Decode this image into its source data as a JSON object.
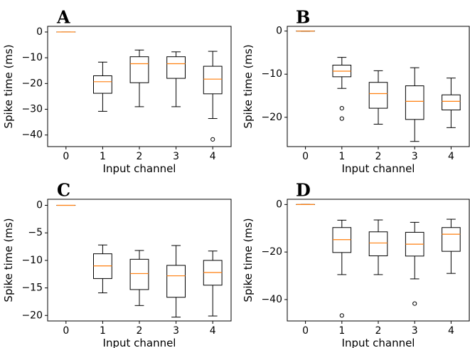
{
  "chart_data": [
    {
      "type": "box",
      "panel_label": "A",
      "xlabel": "Input channel",
      "ylabel": "Spike time (ms)",
      "ylim": [
        -44.5,
        2.2
      ],
      "yticks": [
        0,
        -10,
        -20,
        -30,
        -40
      ],
      "categories": [
        "0",
        "1",
        "2",
        "3",
        "4"
      ],
      "boxes": [
        {
          "min": 0,
          "q1": 0,
          "median": 0,
          "q3": 0,
          "max": 0,
          "fliers": []
        },
        {
          "min": -30.8,
          "q1": -23.8,
          "median": -19.3,
          "q3": -17.0,
          "max": -11.7,
          "fliers": []
        },
        {
          "min": -29.0,
          "q1": -19.7,
          "median": -12.3,
          "q3": -9.6,
          "max": -7.0,
          "fliers": []
        },
        {
          "min": -29.0,
          "q1": -18.0,
          "median": -12.3,
          "q3": -9.6,
          "max": -7.7,
          "fliers": []
        },
        {
          "min": -33.6,
          "q1": -24.0,
          "median": -18.3,
          "q3": -13.3,
          "max": -7.5,
          "fliers": [
            -41.7
          ]
        }
      ]
    },
    {
      "type": "box",
      "panel_label": "B",
      "xlabel": "Input channel",
      "ylabel": "Spike time (ms)",
      "ylim": [
        -26.8,
        1.1
      ],
      "yticks": [
        0,
        -10,
        -20
      ],
      "categories": [
        "0",
        "1",
        "2",
        "3",
        "4"
      ],
      "boxes": [
        {
          "min": 0,
          "q1": 0,
          "median": 0,
          "q3": 0,
          "max": 0,
          "fliers": []
        },
        {
          "min": -13.3,
          "q1": -10.6,
          "median": -9.3,
          "q3": -7.9,
          "max": -6.1,
          "fliers": [
            -17.9,
            -20.3
          ]
        },
        {
          "min": -21.6,
          "q1": -17.9,
          "median": -14.5,
          "q3": -11.9,
          "max": -9.2,
          "fliers": []
        },
        {
          "min": -25.6,
          "q1": -20.5,
          "median": -16.3,
          "q3": -12.7,
          "max": -8.5,
          "fliers": []
        },
        {
          "min": -22.4,
          "q1": -18.3,
          "median": -16.3,
          "q3": -14.8,
          "max": -10.9,
          "fliers": []
        }
      ]
    },
    {
      "type": "box",
      "panel_label": "C",
      "xlabel": "Input channel",
      "ylabel": "Spike time (ms)",
      "ylim": [
        -21.0,
        1.1
      ],
      "yticks": [
        0,
        -5,
        -10,
        -15,
        -20
      ],
      "categories": [
        "0",
        "1",
        "2",
        "3",
        "4"
      ],
      "boxes": [
        {
          "min": 0,
          "q1": 0,
          "median": 0,
          "q3": 0,
          "max": 0,
          "fliers": []
        },
        {
          "min": -15.9,
          "q1": -13.3,
          "median": -11.0,
          "q3": -8.8,
          "max": -7.2,
          "fliers": []
        },
        {
          "min": -18.2,
          "q1": -15.3,
          "median": -12.4,
          "q3": -9.8,
          "max": -8.2,
          "fliers": []
        },
        {
          "min": -20.3,
          "q1": -16.7,
          "median": -12.8,
          "q3": -10.9,
          "max": -7.3,
          "fliers": []
        },
        {
          "min": -20.1,
          "q1": -14.5,
          "median": -12.2,
          "q3": -10.0,
          "max": -8.3,
          "fliers": []
        }
      ]
    },
    {
      "type": "box",
      "panel_label": "D",
      "xlabel": "Input channel",
      "ylabel": "Spike time (ms)",
      "ylim": [
        -49.0,
        2.2
      ],
      "yticks": [
        0,
        -20,
        -40
      ],
      "categories": [
        "0",
        "1",
        "2",
        "3",
        "4"
      ],
      "boxes": [
        {
          "min": 0,
          "q1": 0,
          "median": 0,
          "q3": 0,
          "max": 0,
          "fliers": []
        },
        {
          "min": -29.5,
          "q1": -20.2,
          "median": -14.8,
          "q3": -9.7,
          "max": -6.6,
          "fliers": [
            -46.7
          ]
        },
        {
          "min": -29.5,
          "q1": -21.6,
          "median": -16.2,
          "q3": -11.5,
          "max": -6.5,
          "fliers": []
        },
        {
          "min": -31.3,
          "q1": -21.7,
          "median": -16.7,
          "q3": -11.7,
          "max": -7.5,
          "fliers": [
            -41.7
          ]
        },
        {
          "min": -29.0,
          "q1": -19.7,
          "median": -12.5,
          "q3": -9.7,
          "max": -6.2,
          "fliers": []
        }
      ]
    }
  ]
}
